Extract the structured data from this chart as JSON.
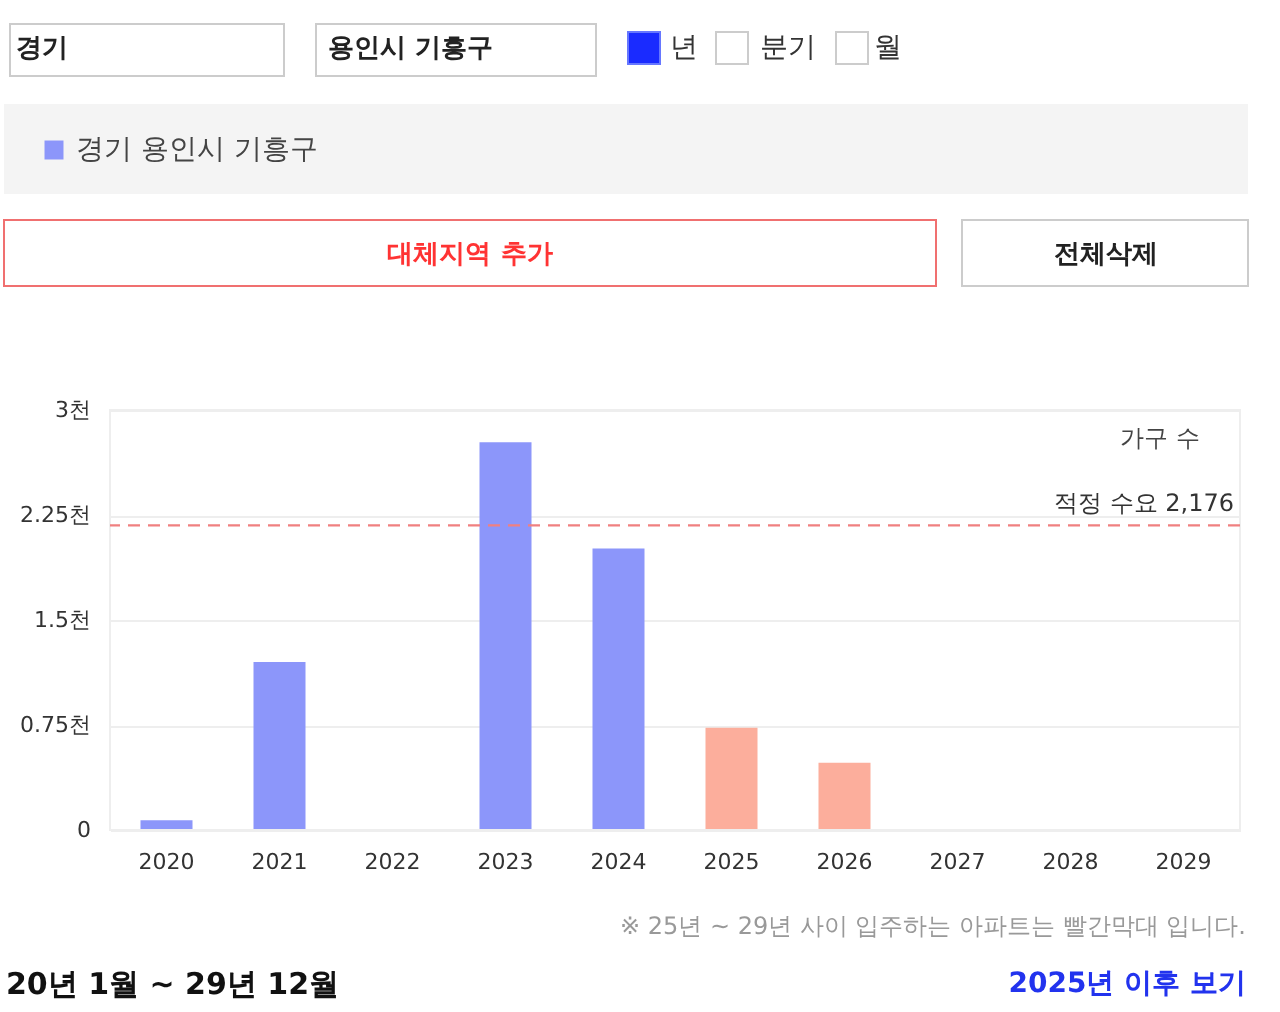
{
  "chart_data": {
    "type": "bar",
    "ylabel": "가구 수",
    "categories": [
      "2020",
      "2021",
      "2022",
      "2023",
      "2024",
      "2025",
      "2026",
      "2027",
      "2028",
      "2029"
    ],
    "series": [
      {
        "name": "경기 용인시 기흥구",
        "values": [
          0.07,
          1.2,
          0,
          2.77,
          2.01,
          0.73,
          0.48,
          0,
          0,
          0
        ],
        "colors": [
          "#8c96fa",
          "#8c96fa",
          "#8c96fa",
          "#8c96fa",
          "#8c96fa",
          "#fcae9c",
          "#fcae9c",
          "#fcae9c",
          "#fcae9c",
          "#fcae9c"
        ]
      }
    ],
    "ylim": [
      0,
      3
    ],
    "yticks": [
      0,
      {
        "value": 0.75,
        "label": "0.75천"
      },
      {
        "value": 1.5,
        "label": "1.5천"
      },
      {
        "value": 2.25,
        "label": "2.25천"
      },
      {
        "value": 3,
        "label": "3천"
      }
    ],
    "grid": "y",
    "legend": "top left",
    "ref_lines": [
      {
        "axis": "y",
        "value": 2.176,
        "label": "적정 수요 2,176",
        "color": "#f08080",
        "line_style": "dashed"
      }
    ],
    "annotations": [
      "경기",
      "용인시 기흥구",
      "년",
      "분기",
      "월",
      "대체지역 추가",
      "전체삭제",
      "※ 25년 ~ 29년 사이 입주하는 아파트는 빨간막대 입니다.",
      "20년 1월 ~ 29년 12월",
      "2025년 이후 보기"
    ]
  }
}
